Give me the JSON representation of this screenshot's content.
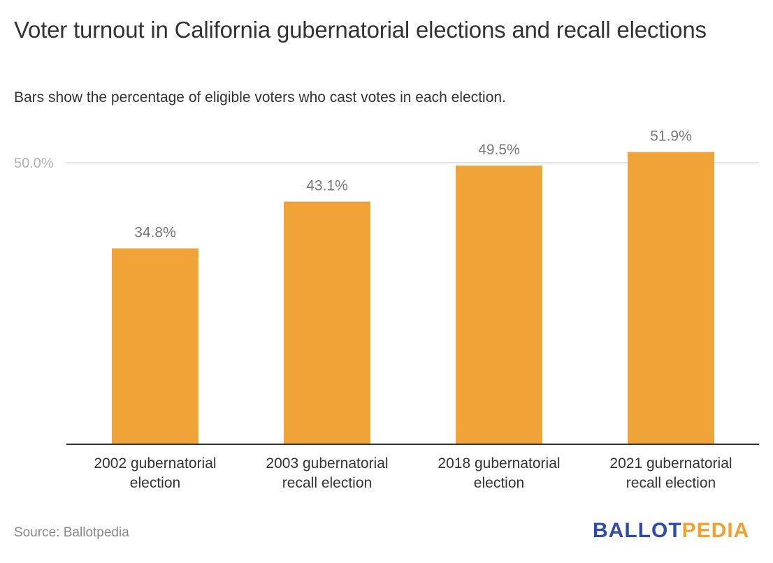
{
  "chart_data": {
    "type": "bar",
    "title": "Voter turnout in California gubernatorial elections and recall elections",
    "subtitle": "Bars show the percentage of eligible voters who cast votes in each election.",
    "categories": [
      [
        "2002 gubernatorial",
        "election"
      ],
      [
        "2003 gubernatorial",
        "recall election"
      ],
      [
        "2018 gubernatorial",
        "election"
      ],
      [
        "2021 gubernatorial",
        "recall election"
      ]
    ],
    "values": [
      34.8,
      43.1,
      49.5,
      51.9
    ],
    "value_labels": [
      "34.8%",
      "43.1%",
      "49.5%",
      "51.9%"
    ],
    "yticks": [
      50.0
    ],
    "ytick_labels": [
      "50.0%"
    ],
    "ylim": [
      0,
      50
    ],
    "xlabel": "",
    "ylabel": "",
    "grid": true,
    "legend": "none",
    "bar_color": "#f0a336"
  },
  "footer": {
    "source": "Source: Ballotpedia",
    "logo_part1": "BALLOT",
    "logo_part2": "PEDIA"
  }
}
